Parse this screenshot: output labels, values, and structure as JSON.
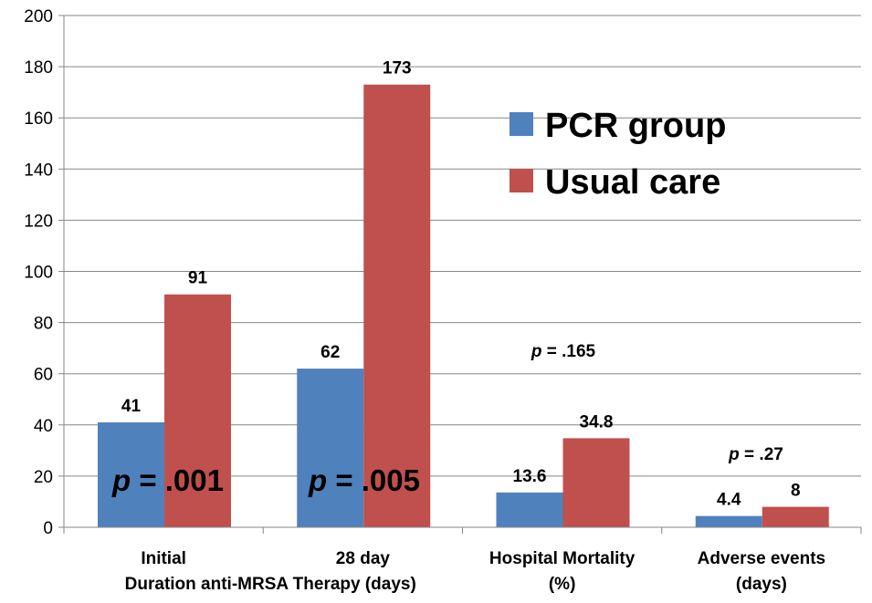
{
  "chart_data": {
    "type": "bar",
    "categories": [
      "Initial",
      "28 day",
      "Hospital Mortality",
      "Adverse events"
    ],
    "category_sublabels": [
      "Duration anti-MRSA Therapy (days)",
      "",
      "(%)",
      "(days)"
    ],
    "series": [
      {
        "name": "PCR group",
        "values": [
          41,
          62,
          13.6,
          4.4
        ],
        "labels": [
          "41",
          "62",
          "13.6",
          "4.4"
        ],
        "color": "#4F81BD"
      },
      {
        "name": "Usual care",
        "values": [
          91,
          173,
          34.8,
          8
        ],
        "labels": [
          "91",
          "173",
          "34.8",
          "8"
        ],
        "color": "#C0504D"
      }
    ],
    "ylim": [
      0,
      200
    ],
    "yticks": [
      0,
      20,
      40,
      60,
      80,
      100,
      120,
      140,
      160,
      180,
      200
    ],
    "grid": true,
    "legend_position": "top-right",
    "annotations": [
      {
        "italic": "p",
        "rest": " = .001"
      },
      {
        "italic": "p",
        "rest": " = .005"
      },
      {
        "italic": "p",
        "rest": " = .165"
      },
      {
        "italic": "p",
        "rest": " = .27"
      }
    ]
  }
}
